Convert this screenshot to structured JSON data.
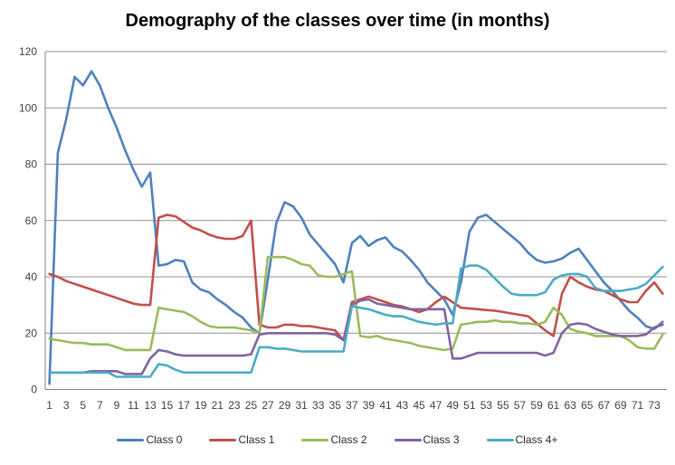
{
  "chart_data": {
    "type": "line",
    "title": "Demography of the classes over time (in months)",
    "xlabel": "",
    "ylabel": "",
    "ylim": [
      0,
      120
    ],
    "y_ticks": [
      0,
      20,
      40,
      60,
      80,
      100,
      120
    ],
    "x_ticks": [
      1,
      3,
      5,
      7,
      9,
      11,
      13,
      15,
      17,
      19,
      21,
      23,
      25,
      27,
      29,
      31,
      33,
      35,
      37,
      39,
      41,
      43,
      45,
      47,
      49,
      51,
      53,
      55,
      57,
      59,
      61,
      63,
      65,
      67,
      69,
      71,
      73
    ],
    "n_months": 74,
    "grid": "horizontal",
    "legend_position": "bottom",
    "colors": {
      "axis": "#808080",
      "gridline": "#919191",
      "tick_text": "#3f3f3f",
      "background": "#ffffff"
    },
    "series": [
      {
        "name": "Class 0",
        "color": "#4F81BD",
        "values": [
          2,
          84,
          96,
          111,
          108,
          113,
          108,
          100,
          93,
          85,
          78,
          72,
          77,
          44,
          44.5,
          46,
          45.5,
          38,
          35.5,
          34.5,
          32,
          30,
          27.5,
          25.5,
          22,
          20,
          39,
          59,
          66.5,
          65,
          61,
          55,
          51.5,
          48,
          44.5,
          38,
          52,
          54.5,
          51,
          53,
          54,
          50.5,
          49,
          46,
          42.5,
          38,
          35,
          32,
          26.5,
          38,
          56,
          61,
          62,
          59.5,
          57,
          54.5,
          52,
          48.5,
          46,
          45,
          45.5,
          46.5,
          48.5,
          50,
          46,
          42,
          38,
          35,
          31.5,
          28,
          25.5,
          22.5,
          21.5,
          24
        ]
      },
      {
        "name": "Class 1",
        "color": "#C0504D",
        "values": [
          41,
          40,
          38.5,
          37.5,
          36.5,
          35.5,
          34.5,
          33.5,
          32.5,
          31.5,
          30.5,
          30,
          30,
          61,
          62,
          61.5,
          59.5,
          57.5,
          56.5,
          55,
          54,
          53.5,
          53.5,
          54.5,
          60,
          23,
          22,
          22,
          23,
          23,
          22.5,
          22.5,
          22,
          21.5,
          21,
          17.5,
          31,
          32,
          33,
          32,
          31,
          30,
          29.5,
          28.5,
          27.5,
          28.5,
          31,
          33,
          31,
          29,
          28.8,
          28.5,
          28.2,
          28,
          27.5,
          27,
          26.5,
          26,
          23.5,
          21,
          19,
          34,
          40,
          38,
          36.5,
          35.5,
          35,
          33.5,
          32,
          31,
          31,
          35,
          38,
          34
        ]
      },
      {
        "name": "Class 2",
        "color": "#9BBB59",
        "values": [
          18,
          17.5,
          17,
          16.5,
          16.5,
          16,
          16,
          16,
          15,
          14,
          14,
          14,
          14,
          29,
          28.5,
          28,
          27.5,
          26,
          24,
          22.5,
          22,
          22,
          22,
          21.5,
          21,
          20,
          47,
          47,
          47,
          46,
          44.5,
          44,
          40.5,
          40,
          40,
          41,
          42,
          19,
          18.5,
          19,
          18,
          17.5,
          17,
          16.5,
          15.5,
          15,
          14.5,
          14,
          14.5,
          23,
          23.5,
          24,
          24,
          24.5,
          24,
          24,
          23.5,
          23.5,
          23,
          24,
          29,
          26.5,
          21.5,
          20.5,
          20,
          19,
          19,
          19,
          19,
          17.5,
          15,
          14.5,
          14.5,
          19.5
        ]
      },
      {
        "name": "Class 3",
        "color": "#8064A2",
        "values": [
          6,
          6,
          6,
          6,
          6,
          6.5,
          6.5,
          6.5,
          6.5,
          5.5,
          5.5,
          5.5,
          11,
          14,
          13.5,
          12.5,
          12,
          12,
          12,
          12,
          12,
          12,
          12,
          12,
          12.5,
          19.5,
          20,
          20,
          20,
          20,
          20,
          20,
          20,
          20,
          19.5,
          17.5,
          30,
          31.5,
          32,
          30.5,
          30,
          29.5,
          29,
          28.5,
          28.5,
          28.5,
          28.5,
          28.5,
          11,
          11,
          12,
          13,
          13,
          13,
          13,
          13,
          13,
          13,
          13,
          12,
          13,
          20,
          23,
          23.5,
          23,
          21.5,
          20.5,
          19.5,
          19,
          19,
          19,
          19.5,
          22,
          23
        ]
      },
      {
        "name": "Class 4+",
        "color": "#4BACC6",
        "values": [
          6,
          6,
          6,
          6,
          6,
          6,
          6,
          6,
          4.5,
          4.5,
          4.5,
          4.5,
          4.5,
          9,
          8.5,
          7,
          6,
          6,
          6,
          6,
          6,
          6,
          6,
          6,
          6,
          15,
          15,
          14.5,
          14.5,
          14,
          13.5,
          13.5,
          13.5,
          13.5,
          13.5,
          13.5,
          29.5,
          29,
          28.5,
          27.5,
          26.5,
          26,
          26,
          25,
          24,
          23.5,
          23,
          23.5,
          23.5,
          43,
          44,
          44,
          42.5,
          39.5,
          36.5,
          34,
          33.5,
          33.5,
          33.5,
          34.5,
          39,
          40.5,
          41,
          41,
          40,
          36,
          35,
          35,
          35,
          35.5,
          36,
          37.5,
          40.5,
          43.5
        ]
      }
    ]
  }
}
